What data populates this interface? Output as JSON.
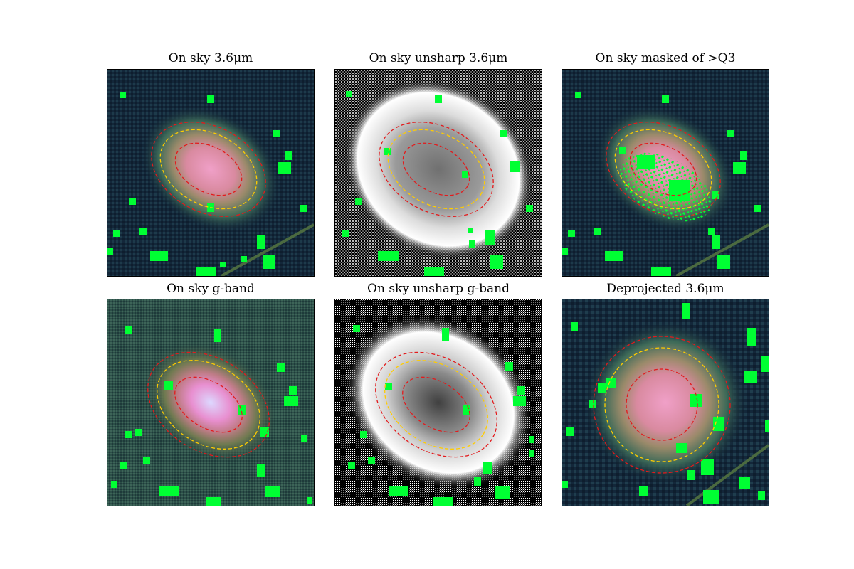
{
  "figure": {
    "panels": [
      {
        "id": "p1",
        "title": "On sky 3.6μm",
        "kind": "color"
      },
      {
        "id": "p2",
        "title": "On sky unsharp 3.6μm",
        "kind": "unsharp"
      },
      {
        "id": "p3",
        "title": "On sky masked of >Q3",
        "kind": "color-masked"
      },
      {
        "id": "p4",
        "title": "On sky g-band",
        "kind": "color-g"
      },
      {
        "id": "p5",
        "title": "On sky unsharp g-band",
        "kind": "unsharp-g"
      },
      {
        "id": "p6",
        "title": "Deprojected 3.6μm",
        "kind": "deprojected"
      }
    ],
    "colors": {
      "mask": "#00ff33",
      "inner_ellipse": "#e31a1c",
      "middle_ellipse": "#ffcc00",
      "outer_ellipse": "#e31a1c",
      "sky_background": "#13273a",
      "galaxy_core": "#e88fb0"
    }
  }
}
